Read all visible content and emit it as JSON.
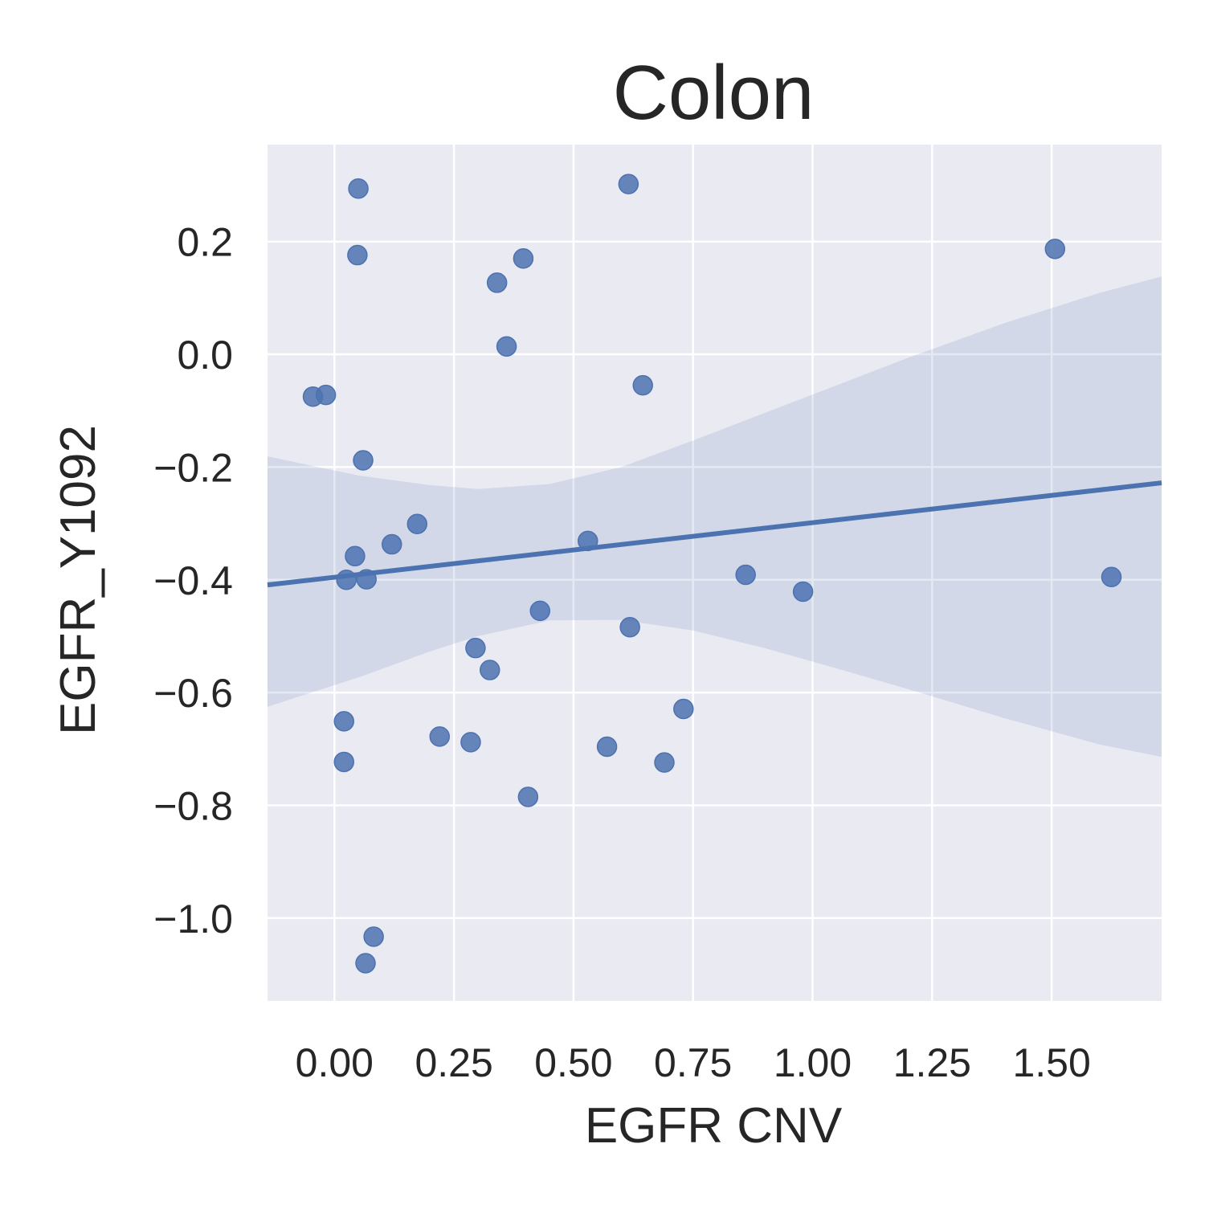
{
  "chart_data": {
    "type": "scatter",
    "title": "Colon",
    "xlabel": "EGFR CNV",
    "ylabel": "EGFR_Y1092",
    "xlim": [
      -0.14,
      1.73
    ],
    "ylim": [
      -1.147,
      0.372
    ],
    "xticks": [
      0.0,
      0.25,
      0.5,
      0.75,
      1.0,
      1.25,
      1.5
    ],
    "xtick_labels": [
      "0.00",
      "0.25",
      "0.50",
      "0.75",
      "1.00",
      "1.25",
      "1.50"
    ],
    "yticks": [
      0.2,
      0.0,
      -0.2,
      -0.4,
      -0.6,
      -0.8,
      -1.0
    ],
    "ytick_labels": [
      "0.2",
      "0.0",
      "−0.2",
      "−0.4",
      "−0.6",
      "−0.8",
      "−1.0"
    ],
    "grid": true,
    "colors": {
      "background": "#EAEAF2",
      "grid": "#FFFFFF",
      "points": "#4C72B0",
      "line": "#4C72B0",
      "band": "#4C72B0"
    },
    "series": [
      {
        "points": [
          {
            "x": 0.05,
            "y": 0.294
          },
          {
            "x": 0.048,
            "y": 0.176
          },
          {
            "x": 0.615,
            "y": 0.302
          },
          {
            "x": 0.395,
            "y": 0.17
          },
          {
            "x": 0.34,
            "y": 0.127
          },
          {
            "x": 0.36,
            "y": 0.014
          },
          {
            "x": 1.507,
            "y": 0.187
          },
          {
            "x": 0.645,
            "y": -0.055
          },
          {
            "x": -0.045,
            "y": -0.075
          },
          {
            "x": -0.018,
            "y": -0.072
          },
          {
            "x": 0.06,
            "y": -0.188
          },
          {
            "x": 0.173,
            "y": -0.301
          },
          {
            "x": 0.12,
            "y": -0.337
          },
          {
            "x": 0.53,
            "y": -0.331
          },
          {
            "x": 0.043,
            "y": -0.358
          },
          {
            "x": 0.025,
            "y": -0.4
          },
          {
            "x": 0.067,
            "y": -0.399
          },
          {
            "x": 0.86,
            "y": -0.391
          },
          {
            "x": 0.98,
            "y": -0.421
          },
          {
            "x": 1.625,
            "y": -0.395
          },
          {
            "x": 0.43,
            "y": -0.455
          },
          {
            "x": 0.618,
            "y": -0.484
          },
          {
            "x": 0.295,
            "y": -0.521
          },
          {
            "x": 0.325,
            "y": -0.56
          },
          {
            "x": 0.02,
            "y": -0.651
          },
          {
            "x": 0.22,
            "y": -0.678
          },
          {
            "x": 0.285,
            "y": -0.688
          },
          {
            "x": 0.57,
            "y": -0.696
          },
          {
            "x": 0.73,
            "y": -0.629
          },
          {
            "x": 0.02,
            "y": -0.723
          },
          {
            "x": 0.69,
            "y": -0.724
          },
          {
            "x": 0.405,
            "y": -0.785
          },
          {
            "x": 0.082,
            "y": -1.033
          },
          {
            "x": 0.065,
            "y": -1.08
          }
        ]
      }
    ],
    "regression": {
      "line": [
        {
          "x": -0.14,
          "y": -0.409
        },
        {
          "x": 1.73,
          "y": -0.228
        }
      ],
      "ci_upper": [
        {
          "x": -0.14,
          "y": -0.181
        },
        {
          "x": 0.05,
          "y": -0.215
        },
        {
          "x": 0.2,
          "y": -0.232
        },
        {
          "x": 0.3,
          "y": -0.239
        },
        {
          "x": 0.45,
          "y": -0.23
        },
        {
          "x": 0.6,
          "y": -0.2
        },
        {
          "x": 0.75,
          "y": -0.153
        },
        {
          "x": 0.9,
          "y": -0.104
        },
        {
          "x": 1.05,
          "y": -0.055
        },
        {
          "x": 1.2,
          "y": -0.006
        },
        {
          "x": 1.4,
          "y": 0.055
        },
        {
          "x": 1.6,
          "y": 0.109
        },
        {
          "x": 1.73,
          "y": 0.138
        }
      ],
      "ci_lower": [
        {
          "x": -0.14,
          "y": -0.625
        },
        {
          "x": 0.05,
          "y": -0.573
        },
        {
          "x": 0.2,
          "y": -0.527
        },
        {
          "x": 0.3,
          "y": -0.5
        },
        {
          "x": 0.45,
          "y": -0.472
        },
        {
          "x": 0.6,
          "y": -0.471
        },
        {
          "x": 0.75,
          "y": -0.49
        },
        {
          "x": 0.9,
          "y": -0.521
        },
        {
          "x": 1.05,
          "y": -0.557
        },
        {
          "x": 1.2,
          "y": -0.594
        },
        {
          "x": 1.4,
          "y": -0.645
        },
        {
          "x": 1.6,
          "y": -0.692
        },
        {
          "x": 1.73,
          "y": -0.714
        }
      ]
    }
  }
}
